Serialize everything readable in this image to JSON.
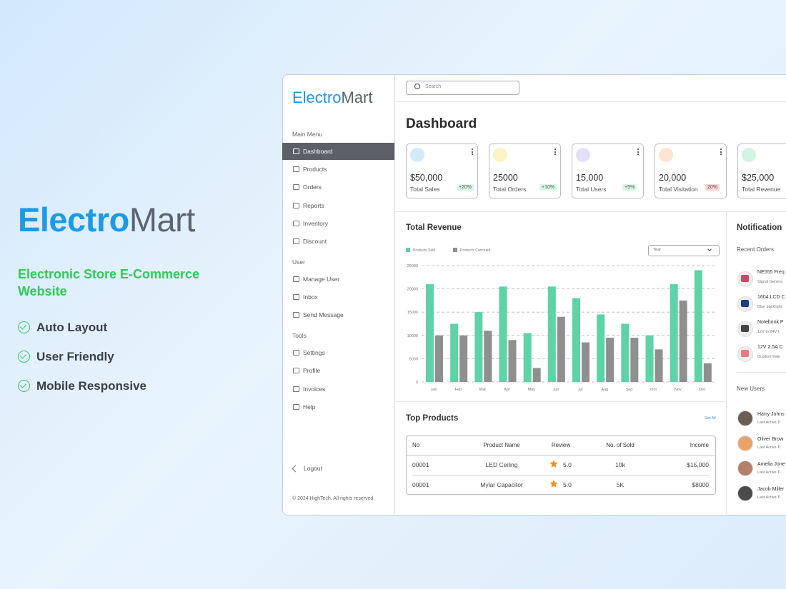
{
  "promo": {
    "brand_a": "Electro",
    "brand_b": "Mart",
    "subtitle": "Electronic Store E-Commerce Website",
    "features": [
      "Auto Layout",
      "User Friendly",
      "Mobile Responsive"
    ]
  },
  "sidebar": {
    "brand_a": "Electro",
    "brand_b": "Mart",
    "sections": [
      {
        "title": "Main Menu",
        "items": [
          "Dashboard",
          "Products",
          "Orders",
          "Reports",
          "Inventory",
          "Discount"
        ]
      },
      {
        "title": "User",
        "items": [
          "Manage User",
          "Inbox",
          "Send Message"
        ]
      },
      {
        "title": "Tools",
        "items": [
          "Settings",
          "Profile",
          "Invoices",
          "Help"
        ]
      }
    ],
    "active": "Dashboard",
    "logout": "Logout",
    "footer": "© 2024 HighTech. All rights reserved."
  },
  "search_placeholder": "Search",
  "page_title": "Dashboard",
  "stats": [
    {
      "value": "$50,000",
      "label": "Total Sales",
      "change": "+20%",
      "icon_color": "#d3eafb",
      "badge_color": "#d9f7e4"
    },
    {
      "value": "25000",
      "label": "Total Orders",
      "change": "+10%",
      "icon_color": "#fbf3c2",
      "badge_color": "#d9f7e4"
    },
    {
      "value": "15,000",
      "label": "Total Users",
      "change": "+5%",
      "icon_color": "#e5e0fa",
      "badge_color": "#d9f7e4"
    },
    {
      "value": "20,000",
      "label": "Total Visitation",
      "change": "20%",
      "icon_color": "#fde4d3",
      "badge_color": "#fbd3d3"
    },
    {
      "value": "$25,000",
      "label": "Total Revenue",
      "icon_color": "#d2f4e4"
    }
  ],
  "revenue_chart": {
    "type": "bar",
    "title": "Total Revenue",
    "filter": "Year",
    "categories": [
      "Jan",
      "Feb",
      "Mar",
      "Apr",
      "May",
      "Jun",
      "Jul",
      "Aug",
      "Sep",
      "Oct",
      "Nov",
      "Dec"
    ],
    "series": [
      {
        "name": "Products Sold",
        "color": "#5dd3a6",
        "values": [
          21000,
          12500,
          15000,
          20500,
          10500,
          20500,
          18000,
          14500,
          12500,
          10000,
          21000,
          24000
        ]
      },
      {
        "name": "Products Canceled",
        "color": "#8f8f8f",
        "values": [
          10000,
          10000,
          11000,
          9000,
          3000,
          14000,
          8500,
          9500,
          9500,
          7000,
          17500,
          4000
        ]
      }
    ],
    "ylim": [
      0,
      25000
    ],
    "yticks": [
      0,
      5000,
      10000,
      15000,
      20000,
      25000
    ],
    "grid": true
  },
  "top_products": {
    "title": "Top Products",
    "link": "See All",
    "columns": [
      "No",
      "Product Name",
      "Review",
      "No. of Sold",
      "Income"
    ],
    "rows": [
      [
        "00001",
        "LED Ceiling",
        "5.0",
        "10k",
        "$15,000"
      ],
      [
        "00001",
        "Mylar Capacitor",
        "5.0",
        "5K",
        "$8000"
      ]
    ]
  },
  "notifications": {
    "title": "Notification",
    "recent_title": "Recent Orders",
    "orders": [
      {
        "name": "NE555 Freq",
        "desc": "Signal Genera"
      },
      {
        "name": "1604 LCD C",
        "desc": "Blue backlight"
      },
      {
        "name": "Notebook P",
        "desc": "12V to 24V I"
      },
      {
        "name": "12V 2.5A C",
        "desc": "Outdoor/Indo"
      }
    ],
    "users_title": "New Users",
    "users": [
      {
        "name": "Harry Johns",
        "desc": "Last Active Ti"
      },
      {
        "name": "Oliver Brow",
        "desc": "Last Active Ti"
      },
      {
        "name": "Amelia Jone",
        "desc": "Last Active Ti"
      },
      {
        "name": "Jacob Miller",
        "desc": "Last Active Ti"
      }
    ]
  }
}
